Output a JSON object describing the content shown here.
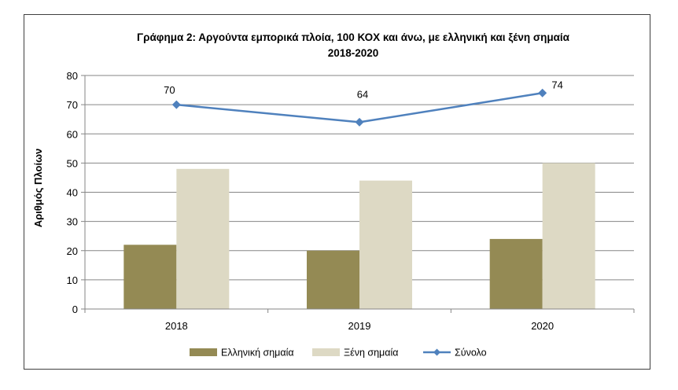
{
  "chart_data": {
    "type": "bar",
    "title": "Γράφημα 2: Αργούντα εμπορικά πλοία, 100 ΚΟΧ και άνω, με ελληνική και ξένη σημαία",
    "subtitle": "2018-2020",
    "xlabel": "",
    "ylabel": "Αριθμός Πλοίων",
    "ylim": [
      0,
      80
    ],
    "yticks": [
      "0",
      "10",
      "20",
      "30",
      "40",
      "50",
      "60",
      "70",
      "80"
    ],
    "categories": [
      "2018",
      "2019",
      "2020"
    ],
    "grid": true,
    "legend_position": "bottom",
    "series": [
      {
        "name": "Ελληνική σημαία",
        "type": "bar",
        "color": "#948a54",
        "values": [
          22,
          20,
          24
        ]
      },
      {
        "name": "Ξένη σημαία",
        "type": "bar",
        "color": "#ddd9c4",
        "values": [
          48,
          44,
          50
        ]
      },
      {
        "name": "Σύνολο",
        "type": "line",
        "color": "#4f81bd",
        "values": [
          70,
          64,
          74
        ],
        "data_labels": [
          "70",
          "64",
          "74"
        ]
      }
    ]
  }
}
